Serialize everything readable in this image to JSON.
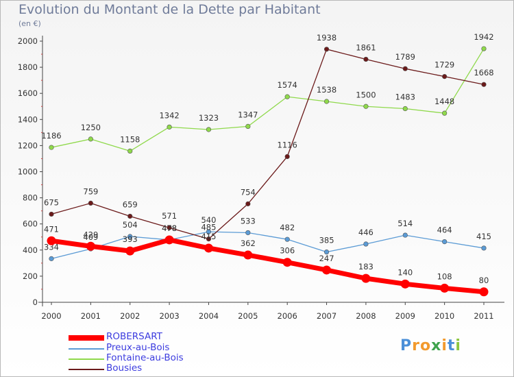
{
  "chart_data": {
    "type": "line",
    "title": "Evolution du Montant de la Dette par Habitant",
    "subtitle": "(en €)",
    "x": [
      "2000",
      "2001",
      "2002",
      "2003",
      "2004",
      "2005",
      "2006",
      "2007",
      "2008",
      "2009",
      "2010",
      "2011"
    ],
    "ylim": [
      0,
      2000
    ],
    "yticks": [
      0,
      200,
      400,
      600,
      800,
      1000,
      1200,
      1400,
      1600,
      1800,
      2000
    ],
    "grid": false,
    "legend_position": "bottom-left",
    "series": [
      {
        "name": "ROBERSART",
        "color": "#ff0000",
        "values": [
          471,
          429,
          393,
          478,
          415,
          362,
          306,
          247,
          183,
          140,
          108,
          80
        ]
      },
      {
        "name": "Preux-au-Bois",
        "color": "#5b9bd5",
        "values": [
          334,
          409,
          504,
          478,
          540,
          533,
          482,
          385,
          446,
          514,
          464,
          415
        ]
      },
      {
        "name": "Fontaine-au-Bois",
        "color": "#8fd94b",
        "values": [
          1186,
          1250,
          1158,
          1342,
          1323,
          1347,
          1574,
          1538,
          1500,
          1483,
          1448,
          1942
        ]
      },
      {
        "name": "Bousies",
        "color": "#6b1a1a",
        "values": [
          675,
          759,
          659,
          571,
          485,
          754,
          1116,
          1938,
          1861,
          1789,
          1729,
          1668
        ]
      }
    ]
  },
  "logo": {
    "letters": [
      "P",
      "r",
      "o",
      "x",
      "i",
      "t",
      "i"
    ],
    "colors": [
      "#4a8fd8",
      "#f29a2e",
      "#f29a2e",
      "#3fa34d",
      "#f29a2e",
      "#4a8fd8",
      "#8cc63f"
    ]
  }
}
